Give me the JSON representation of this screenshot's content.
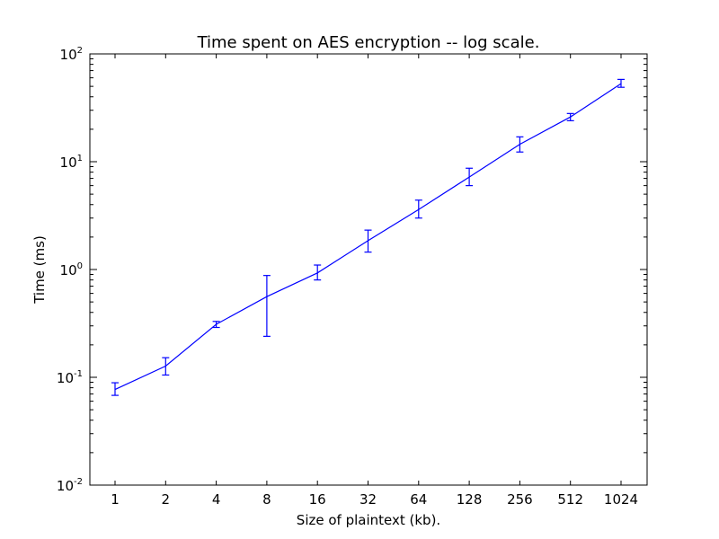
{
  "chart_data": {
    "type": "line",
    "title": "Time spent on AES encryption -- log scale.",
    "xlabel": "Size of plaintext (kb).",
    "ylabel": "Time (ms)",
    "yscale": "log",
    "ylim": [
      0.01,
      100
    ],
    "y_ticks": [
      {
        "value": 0.01,
        "base": "10",
        "exp": "-2"
      },
      {
        "value": 0.1,
        "base": "10",
        "exp": "-1"
      },
      {
        "value": 1,
        "base": "10",
        "exp": "0"
      },
      {
        "value": 10,
        "base": "10",
        "exp": "1"
      },
      {
        "value": 100,
        "base": "10",
        "exp": "2"
      }
    ],
    "categories": [
      "1",
      "2",
      "4",
      "8",
      "16",
      "32",
      "64",
      "128",
      "256",
      "512",
      "1024"
    ],
    "series": [
      {
        "color": "#0000ff",
        "values": [
          0.077,
          0.127,
          0.31,
          0.56,
          0.93,
          1.85,
          3.6,
          7.2,
          14.5,
          26,
          53
        ],
        "err_low": [
          0.068,
          0.105,
          0.29,
          0.24,
          0.8,
          1.45,
          3.0,
          6.0,
          12.3,
          24,
          49
        ],
        "err_high": [
          0.089,
          0.152,
          0.33,
          0.88,
          1.1,
          2.32,
          4.4,
          8.7,
          17.0,
          28,
          58
        ]
      }
    ],
    "grid": false,
    "legend": "none"
  }
}
